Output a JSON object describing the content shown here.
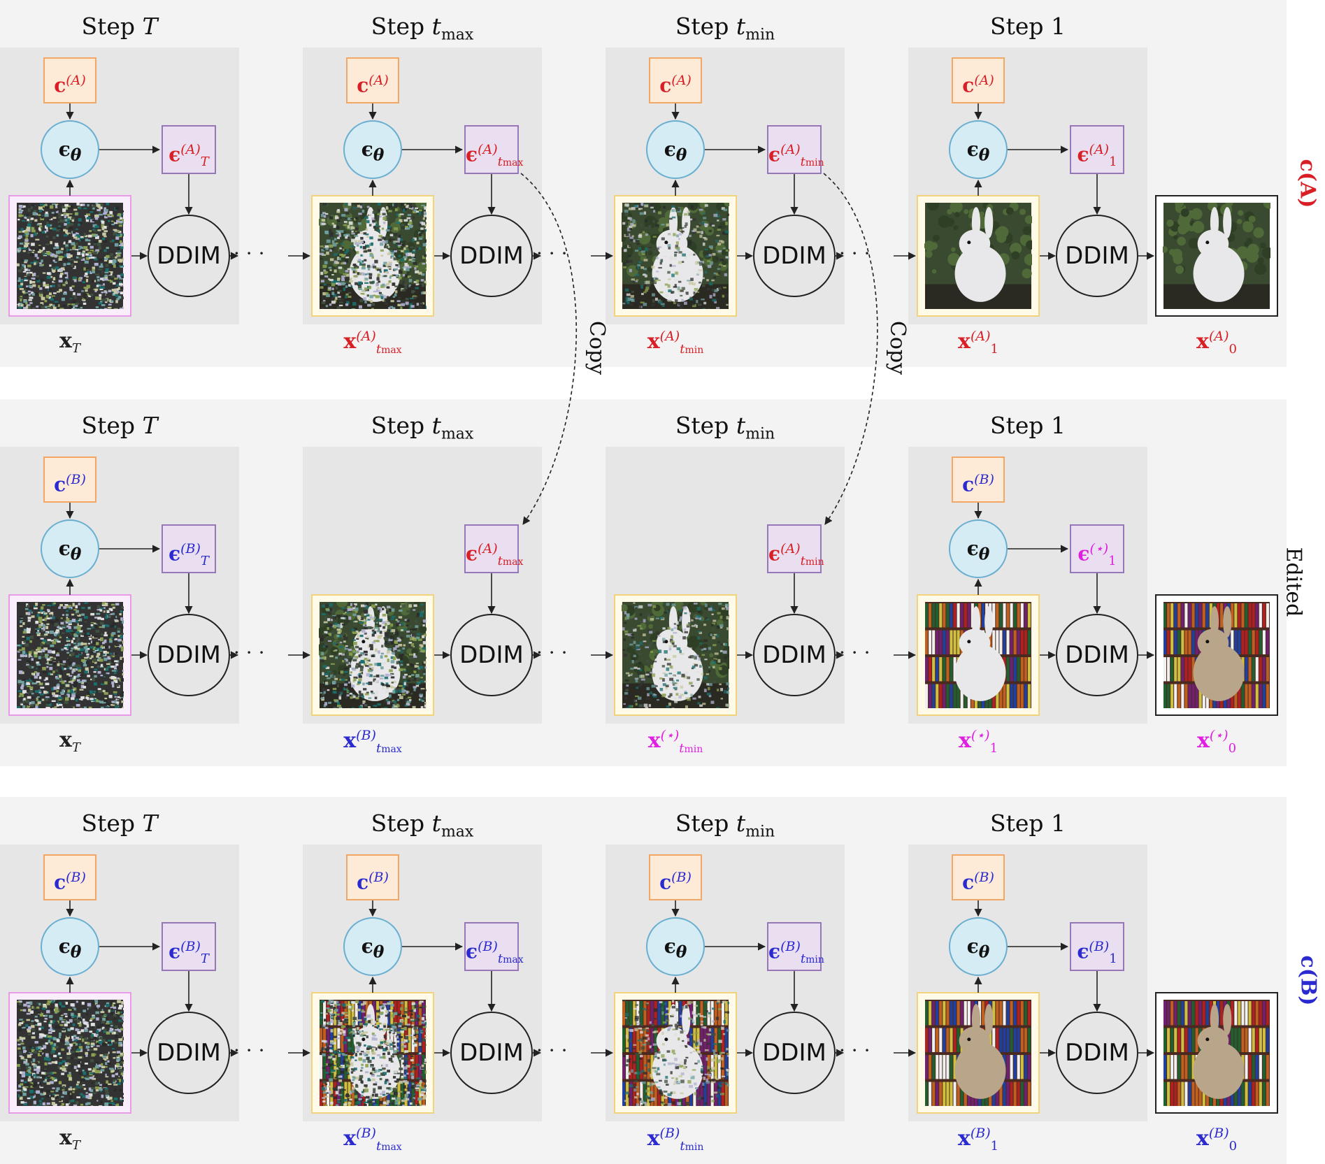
{
  "row_labels": {
    "top": "c(A)",
    "middle": "Edited",
    "bottom": "c(B)"
  },
  "step_titles": [
    "Step T",
    "Step tmax",
    "Step tmin",
    "Step 1"
  ],
  "ddim_label": "DDIM",
  "eps_theta": "ϵθ",
  "ellipsis": "· · ·",
  "copy_label": "Copy",
  "colors": {
    "a": "#d81f26",
    "b": "#2a2ad0",
    "star": "#e020e0"
  },
  "rows": [
    {
      "c_labels": [
        "c(A)",
        "c(A)",
        "c(A)",
        "c(A)"
      ],
      "e_labels": [
        "ϵT(A)",
        "ϵtmax(A)",
        "ϵtmin(A)",
        "ϵ1(A)"
      ],
      "x_labels": [
        "xT",
        "xtmax(A)",
        "xtmin(A)",
        "x1(A)",
        "x0(A)"
      ]
    },
    {
      "c_labels": [
        "c(B)",
        "c(B)"
      ],
      "e_labels": [
        "ϵT(B)",
        "ϵtmax(A)",
        "ϵtmin(A)",
        "ϵ1(⋆)"
      ],
      "x_labels": [
        "xT",
        "xtmax(B)",
        "xtmin(⋆)",
        "x1(⋆)",
        "x0(⋆)"
      ]
    },
    {
      "c_labels": [
        "c(B)",
        "c(B)",
        "c(B)",
        "c(B)"
      ],
      "e_labels": [
        "ϵT(B)",
        "ϵtmax(B)",
        "ϵtmin(B)",
        "ϵ1(B)"
      ],
      "x_labels": [
        "xT",
        "xtmax(B)",
        "xtmin(B)",
        "x1(B)",
        "x0(B)"
      ]
    }
  ],
  "images": [
    [
      "noise",
      "noisy rabbit",
      "rabbit (less noise)",
      "rabbit on grass",
      "rabbit on grass"
    ],
    [
      "noise",
      "noisy rabbit",
      "rabbit (less noise)",
      "rabbit in library",
      "rabbit in library"
    ],
    [
      "noise",
      "noisy rabbit with bookshelves",
      "rabbit with bookshelves",
      "rabbit in library",
      "rabbit in library"
    ]
  ]
}
